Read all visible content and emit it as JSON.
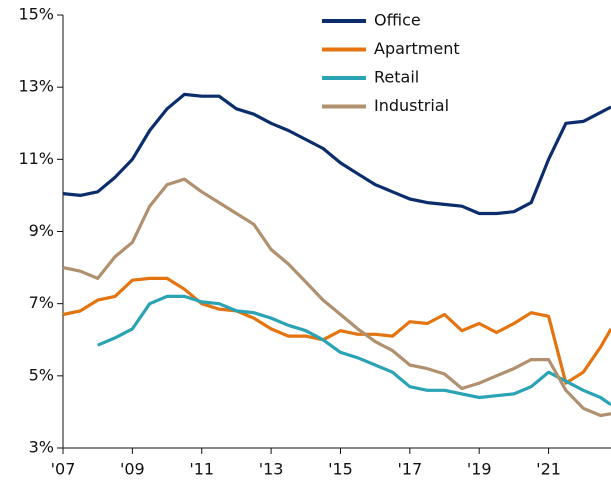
{
  "chart_data": {
    "type": "line",
    "x": [
      2007,
      2007.5,
      2008,
      2008.5,
      2009,
      2009.5,
      2010,
      2010.5,
      2011,
      2011.5,
      2012,
      2012.5,
      2013,
      2013.5,
      2014,
      2014.5,
      2015,
      2015.5,
      2016,
      2016.5,
      2017,
      2017.5,
      2018,
      2018.5,
      2019,
      2019.5,
      2020,
      2020.5,
      2021,
      2021.5,
      2022,
      2022.5,
      2022.8
    ],
    "series": [
      {
        "name": "Office",
        "color": "#0b2d6b",
        "values": [
          10.05,
          10.0,
          10.1,
          10.5,
          11.0,
          11.8,
          12.4,
          12.8,
          12.75,
          12.75,
          12.4,
          12.25,
          12.0,
          11.8,
          11.55,
          11.3,
          10.9,
          10.6,
          10.3,
          10.1,
          9.9,
          9.8,
          9.75,
          9.7,
          9.5,
          9.5,
          9.55,
          9.8,
          11.0,
          12.0,
          12.05,
          12.3,
          12.45
        ]
      },
      {
        "name": "Apartment",
        "color": "#e3740f",
        "values": [
          6.7,
          6.8,
          7.1,
          7.2,
          7.65,
          7.7,
          7.7,
          7.4,
          7.0,
          6.85,
          6.8,
          6.6,
          6.3,
          6.1,
          6.1,
          6.0,
          6.25,
          6.15,
          6.15,
          6.1,
          6.5,
          6.45,
          6.7,
          6.25,
          6.45,
          6.2,
          6.45,
          6.75,
          6.65,
          4.8,
          5.1,
          5.8,
          6.3
        ]
      },
      {
        "name": "Retail",
        "color": "#2aa3b5",
        "values": [
          null,
          null,
          5.85,
          6.05,
          6.3,
          7.0,
          7.2,
          7.2,
          7.05,
          7.0,
          6.8,
          6.75,
          6.6,
          6.4,
          6.25,
          6.0,
          5.65,
          5.5,
          5.3,
          5.1,
          4.7,
          4.6,
          4.6,
          4.5,
          4.4,
          4.45,
          4.5,
          4.7,
          5.1,
          4.85,
          4.6,
          4.4,
          4.2
        ]
      },
      {
        "name": "Industrial",
        "color": "#b0906f",
        "values": [
          8.0,
          7.9,
          7.7,
          8.3,
          8.7,
          9.7,
          10.3,
          10.45,
          10.1,
          9.8,
          9.5,
          9.2,
          8.5,
          8.1,
          7.6,
          7.1,
          6.7,
          6.3,
          5.95,
          5.7,
          5.3,
          5.2,
          5.05,
          4.65,
          4.8,
          5.0,
          5.2,
          5.45,
          5.45,
          4.6,
          4.1,
          3.9,
          3.95
        ]
      }
    ],
    "xlim": [
      2007,
      2022.8
    ],
    "xticks": [
      {
        "value": 2007,
        "label": "'07"
      },
      {
        "value": 2009,
        "label": "'09"
      },
      {
        "value": 2011,
        "label": "'11"
      },
      {
        "value": 2013,
        "label": "'13"
      },
      {
        "value": 2015,
        "label": "'15"
      },
      {
        "value": 2017,
        "label": "'17"
      },
      {
        "value": 2019,
        "label": "'19"
      },
      {
        "value": 2021,
        "label": "'21"
      }
    ],
    "ylim": [
      3,
      15
    ],
    "yticks": [
      {
        "value": 3,
        "label": "3%"
      },
      {
        "value": 5,
        "label": "5%"
      },
      {
        "value": 7,
        "label": "7%"
      },
      {
        "value": 9,
        "label": "9%"
      },
      {
        "value": 11,
        "label": "11%"
      },
      {
        "value": 13,
        "label": "13%"
      },
      {
        "value": 15,
        "label": "15%"
      }
    ],
    "grid": false,
    "legend": "top"
  }
}
